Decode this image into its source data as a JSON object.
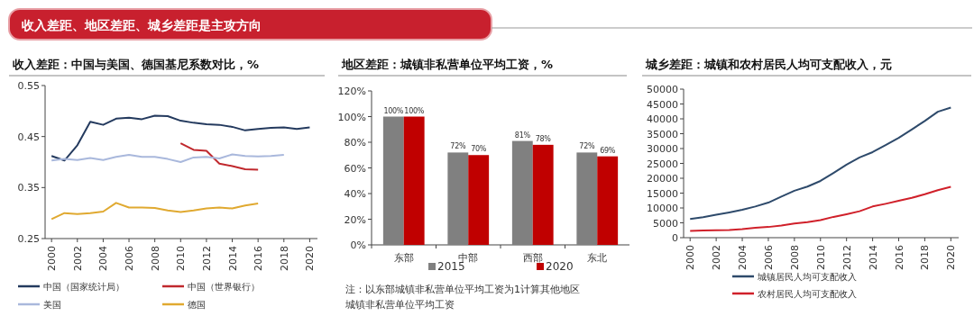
{
  "chart_data": [
    {
      "type": "other",
      "title": "收入差距、地区差距、城乡差距是主攻方向"
    },
    {
      "type": "line",
      "title": "收入差距：中国与美国、德国基尼系数对比，%",
      "xlim": [
        1999.5,
        2020.6
      ],
      "xticks": [
        2000,
        2002,
        2004,
        2006,
        2008,
        2010,
        2012,
        2014,
        2016,
        2018,
        2020
      ],
      "ylim": [
        0.25,
        0.55
      ],
      "yticks": [
        0.25,
        0.35,
        0.45,
        0.55
      ],
      "legend": "bottom",
      "series": [
        {
          "name": "中国（国家统计局）",
          "color": "#243a5e",
          "x": [
            2000,
            2001,
            2002,
            2003,
            2004,
            2005,
            2006,
            2007,
            2008,
            2009,
            2010,
            2011,
            2012,
            2013,
            2014,
            2015,
            2016,
            2017,
            2018,
            2019,
            2020
          ],
          "values": [
            0.412,
            0.403,
            0.433,
            0.479,
            0.473,
            0.485,
            0.487,
            0.484,
            0.491,
            0.49,
            0.481,
            0.477,
            0.474,
            0.473,
            0.469,
            0.462,
            0.465,
            0.467,
            0.468,
            0.465,
            0.468
          ]
        },
        {
          "name": "中国（世界银行）",
          "color": "#c0282d",
          "x": [
            2010,
            2011,
            2012,
            2013,
            2014,
            2015,
            2016
          ],
          "values": [
            0.437,
            0.424,
            0.422,
            0.397,
            0.392,
            0.386,
            0.385
          ]
        },
        {
          "name": "美国",
          "color": "#a9b8dc",
          "x": [
            2000,
            2001,
            2002,
            2003,
            2004,
            2005,
            2006,
            2007,
            2008,
            2009,
            2010,
            2011,
            2012,
            2013,
            2014,
            2015,
            2016,
            2017,
            2018
          ],
          "values": [
            0.403,
            0.406,
            0.404,
            0.408,
            0.404,
            0.41,
            0.414,
            0.41,
            0.41,
            0.406,
            0.4,
            0.409,
            0.41,
            0.407,
            0.415,
            0.412,
            0.411,
            0.412,
            0.414
          ]
        },
        {
          "name": "德国",
          "color": "#e0a930",
          "x": [
            2000,
            2001,
            2002,
            2003,
            2004,
            2005,
            2006,
            2007,
            2008,
            2009,
            2010,
            2011,
            2012,
            2013,
            2014,
            2015,
            2016
          ],
          "values": [
            0.288,
            0.3,
            0.298,
            0.3,
            0.303,
            0.32,
            0.311,
            0.311,
            0.31,
            0.305,
            0.302,
            0.305,
            0.309,
            0.311,
            0.309,
            0.315,
            0.319
          ]
        }
      ]
    },
    {
      "type": "bar",
      "title": "地区差距：城镇非私营单位平均工资，%",
      "categories": [
        "东部",
        "中部",
        "西部",
        "东北"
      ],
      "ylim": [
        0,
        120
      ],
      "yticks": [
        {
          "value": 0,
          "label": "0%"
        },
        {
          "value": 20,
          "label": "20%"
        },
        {
          "value": 40,
          "label": "40%"
        },
        {
          "value": 60,
          "label": "60%"
        },
        {
          "value": 80,
          "label": "80%"
        },
        {
          "value": 100,
          "label": "100%"
        },
        {
          "value": 120,
          "label": "120%"
        }
      ],
      "legend": "bottom",
      "annotations": [
        "注：以东部城镇非私营单位平均工资为1计算其他地区城镇非私营单位平均工资"
      ],
      "series": [
        {
          "name": "2015",
          "color": "#808080",
          "values": [
            100,
            72,
            81,
            72
          ],
          "value_labels": [
            "100%",
            "72%",
            "81%",
            "72%"
          ]
        },
        {
          "name": "2020",
          "color": "#c00000",
          "values": [
            100,
            70,
            78,
            69
          ],
          "value_labels": [
            "100%",
            "70%",
            "78%",
            "69%"
          ]
        }
      ]
    },
    {
      "type": "line",
      "title": "城乡差距：城镇和农村居民人均可支配收入，元",
      "xlim": [
        1999.5,
        2020.6
      ],
      "xticks": [
        2000,
        2002,
        2004,
        2006,
        2008,
        2010,
        2012,
        2014,
        2016,
        2018,
        2020
      ],
      "ylim": [
        0,
        50000
      ],
      "yticks": [
        0,
        5000,
        10000,
        15000,
        20000,
        25000,
        30000,
        35000,
        40000,
        45000,
        50000
      ],
      "legend": "bottom",
      "series": [
        {
          "name": "城镇居民人均可支配收入",
          "color": "#2e4a6b",
          "x": [
            2000,
            2001,
            2002,
            2003,
            2004,
            2005,
            2006,
            2007,
            2008,
            2009,
            2010,
            2011,
            2012,
            2013,
            2014,
            2015,
            2016,
            2017,
            2018,
            2019,
            2020
          ],
          "values": [
            6300,
            6900,
            7700,
            8500,
            9400,
            10500,
            11800,
            13800,
            15800,
            17200,
            19100,
            21800,
            24600,
            27000,
            28800,
            31200,
            33600,
            36400,
            39300,
            42400,
            43800
          ]
        },
        {
          "name": "农村居民人均可支配收入",
          "color": "#d0202a",
          "x": [
            2000,
            2001,
            2002,
            2003,
            2004,
            2005,
            2006,
            2007,
            2008,
            2009,
            2010,
            2011,
            2012,
            2013,
            2014,
            2015,
            2016,
            2017,
            2018,
            2019,
            2020
          ],
          "values": [
            2300,
            2400,
            2500,
            2600,
            2900,
            3300,
            3600,
            4100,
            4800,
            5200,
            5900,
            7000,
            7900,
            8900,
            10500,
            11400,
            12400,
            13400,
            14600,
            16000,
            17100
          ]
        }
      ]
    }
  ]
}
